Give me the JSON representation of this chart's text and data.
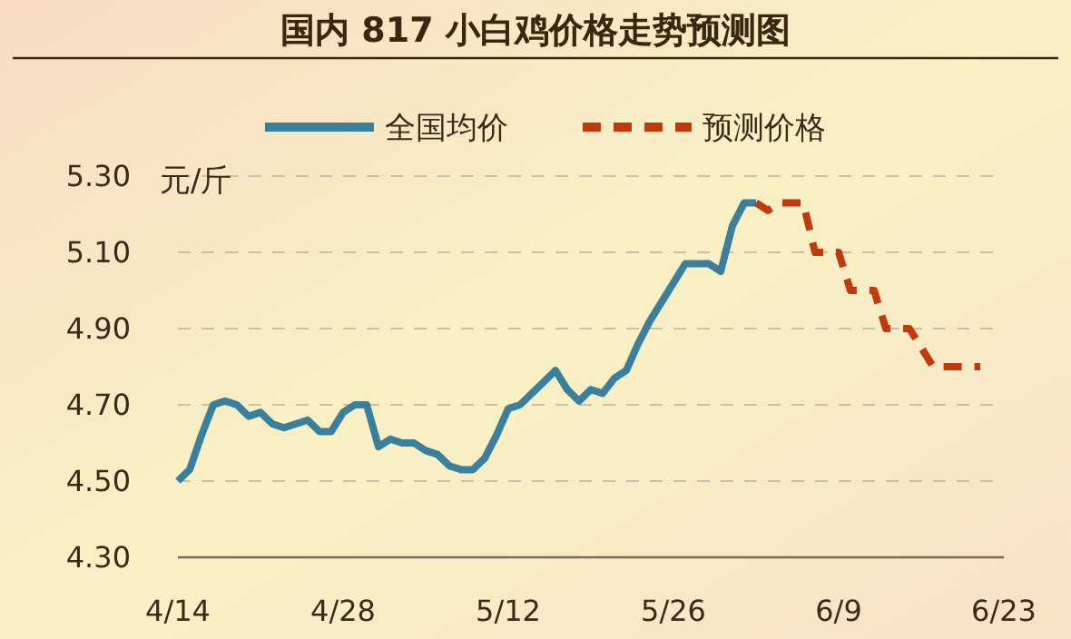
{
  "chart_data": {
    "type": "line",
    "title": "国内 817 小白鸡价格走势预测图",
    "ylabel": "元/斤",
    "xlim": [
      "--04-14",
      "--06-23"
    ],
    "xticks": [
      {
        "value": "--04-14",
        "label": "4/14"
      },
      {
        "value": "--04-28",
        "label": "4/28"
      },
      {
        "value": "--05-12",
        "label": "5/12"
      },
      {
        "value": "--05-26",
        "label": "5/26"
      },
      {
        "value": "--06-09",
        "label": "6/9"
      },
      {
        "value": "--06-23",
        "label": "6/23"
      }
    ],
    "ylim": [
      4.3,
      5.3
    ],
    "yticks": [
      {
        "value": 4.3,
        "label": "4.30"
      },
      {
        "value": 4.5,
        "label": "4.50"
      },
      {
        "value": 4.7,
        "label": "4.70"
      },
      {
        "value": 4.9,
        "label": "4.90"
      },
      {
        "value": 5.1,
        "label": "5.10"
      },
      {
        "value": 5.3,
        "label": "5.30"
      }
    ],
    "grid": "y",
    "legend": "top",
    "series": [
      {
        "name": "全国均价",
        "color": "#3a7f9c",
        "line_style": "solid",
        "x": [
          "--04-14",
          "--04-15",
          "--04-16",
          "--04-17",
          "--04-18",
          "--04-19",
          "--04-20",
          "--04-21",
          "--04-22",
          "--04-23",
          "--04-24",
          "--04-25",
          "--04-26",
          "--04-27",
          "--04-28",
          "--04-29",
          "--04-30",
          "--05-01",
          "--05-02",
          "--05-03",
          "--05-04",
          "--05-05",
          "--05-06",
          "--05-07",
          "--05-08",
          "--05-09",
          "--05-10",
          "--05-11",
          "--05-12",
          "--05-13",
          "--05-14",
          "--05-15",
          "--05-16",
          "--05-17",
          "--05-18",
          "--05-19",
          "--05-20",
          "--05-21",
          "--05-22",
          "--05-23",
          "--05-24",
          "--05-25",
          "--05-26",
          "--05-27",
          "--05-28",
          "--05-29",
          "--05-30",
          "--05-31",
          "--06-01",
          "--06-02"
        ],
        "values": [
          4.5,
          4.53,
          4.62,
          4.7,
          4.71,
          4.7,
          4.67,
          4.68,
          4.65,
          4.64,
          4.65,
          4.66,
          4.63,
          4.63,
          4.68,
          4.7,
          4.7,
          4.59,
          4.61,
          4.6,
          4.6,
          4.58,
          4.57,
          4.54,
          4.53,
          4.53,
          4.56,
          4.62,
          4.69,
          4.7,
          4.73,
          4.76,
          4.79,
          4.74,
          4.71,
          4.74,
          4.73,
          4.77,
          4.79,
          4.86,
          4.92,
          4.97,
          5.02,
          5.07,
          5.07,
          5.07,
          5.05,
          5.17,
          5.23,
          5.23
        ]
      },
      {
        "name": "预测价格",
        "color": "#c0390f",
        "line_style": "dashed",
        "x": [
          "--06-02",
          "--06-03",
          "--06-04",
          "--06-05",
          "--06-06",
          "--06-07",
          "--06-08",
          "--06-09",
          "--06-10",
          "--06-11",
          "--06-12",
          "--06-13",
          "--06-14",
          "--06-15",
          "--06-16",
          "--06-17",
          "--06-18",
          "--06-19",
          "--06-20",
          "--06-21"
        ],
        "values": [
          5.23,
          5.21,
          5.23,
          5.23,
          5.23,
          5.1,
          5.1,
          5.1,
          5.0,
          5.0,
          5.0,
          4.9,
          4.9,
          4.9,
          4.85,
          4.8,
          4.8,
          4.8,
          4.8,
          4.8
        ]
      }
    ]
  }
}
